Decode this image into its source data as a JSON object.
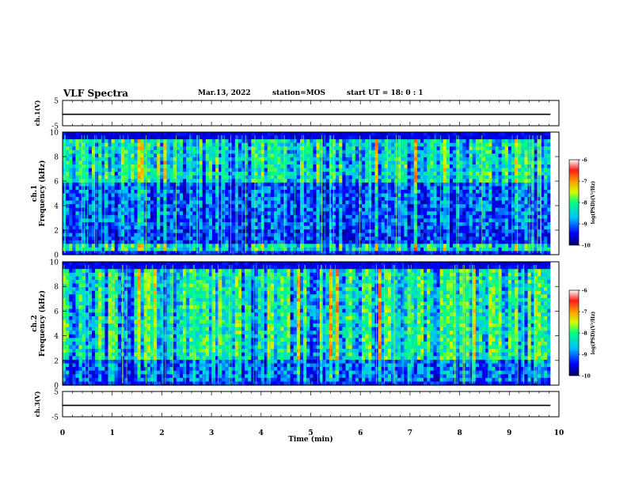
{
  "header": {
    "title": "VLF Spectra",
    "date": "Mar.13, 2022",
    "station": "station=MOS",
    "start": "start UT = 18: 0 : 1"
  },
  "chart_data": [
    {
      "type": "line",
      "panel": "ch.1",
      "ylabel": "ch.1(V)",
      "ylim": [
        -5,
        5
      ],
      "yticks": [
        "5",
        "-5"
      ],
      "xlim": [
        0,
        10
      ],
      "series_value": -0.5
    },
    {
      "type": "heatmap",
      "panel": "ch.1",
      "ylabel": "ch.1 Frequency (kHz)",
      "ylim": [
        0,
        10
      ],
      "yticks": [
        "0",
        "2",
        "4",
        "6",
        "8",
        "10"
      ],
      "xlim": [
        0,
        10
      ],
      "data_end_min": 9.83,
      "colorbar": {
        "label": "log(PSD)(V²/Hz)",
        "range": [
          -10,
          -6
        ],
        "ticks": [
          "-6",
          "-7",
          "-8",
          "-9",
          "-10"
        ]
      }
    },
    {
      "type": "heatmap",
      "panel": "ch.2",
      "ylabel": "ch.2 Frequency (kHz)",
      "ylim": [
        0,
        10
      ],
      "yticks": [
        "0",
        "2",
        "4",
        "6",
        "8",
        "10"
      ],
      "xlim": [
        0,
        10
      ],
      "data_end_min": 9.83,
      "colorbar": {
        "label": "log(PSD)(V²/Hz)",
        "range": [
          -10,
          -6
        ],
        "ticks": [
          "-6",
          "-7",
          "-8",
          "-9",
          "-10"
        ]
      }
    },
    {
      "type": "line",
      "panel": "ch.3",
      "ylabel": "ch.3(V)",
      "ylim": [
        -5,
        5
      ],
      "yticks": [
        "5",
        "-5"
      ],
      "xlim": [
        0,
        10
      ],
      "series_value": -0.5
    }
  ],
  "xaxis": {
    "label": "Time (min)",
    "ticks": [
      "0",
      "1",
      "2",
      "3",
      "4",
      "5",
      "6",
      "7",
      "8",
      "9",
      "10"
    ]
  },
  "colors": {
    "colormap": [
      "#00008f",
      "#0000ff",
      "#00bfff",
      "#00ff7f",
      "#d0ff00",
      "#ff9a00",
      "#ff1a1a",
      "#ffffff"
    ]
  }
}
